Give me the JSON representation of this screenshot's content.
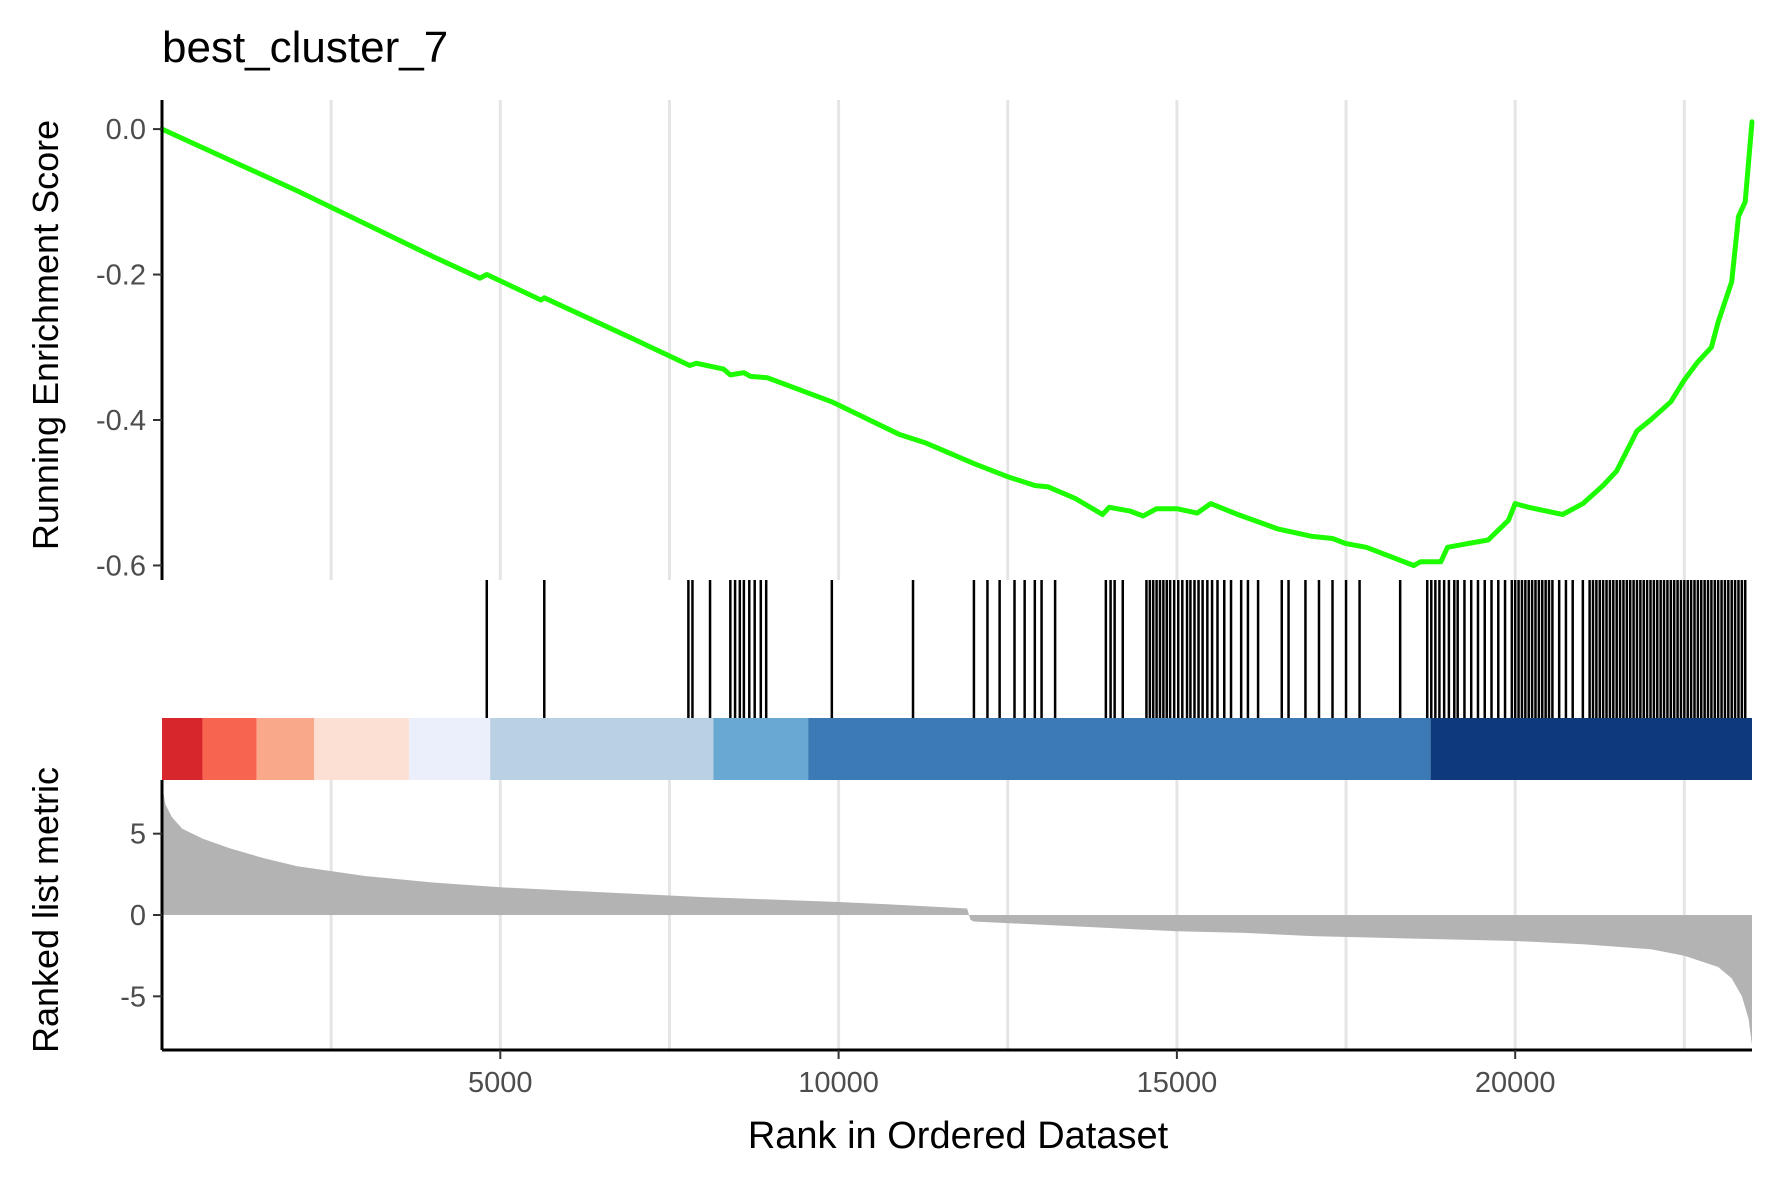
{
  "chart_data": {
    "type": "line",
    "title": "best_cluster_7",
    "xlabel": "Rank in Ordered Dataset",
    "es_ylabel": "Running Enrichment Score",
    "metric_ylabel": "Ranked list metric",
    "xlim": [
      0,
      23500
    ],
    "x_ticks": [
      5000,
      10000,
      15000,
      20000
    ],
    "x_tick_labels": [
      "5000",
      "10000",
      "15000",
      "20000"
    ],
    "es_ylim": [
      -0.62,
      0.04
    ],
    "es_ticks": [
      0.0,
      -0.2,
      -0.4,
      -0.6
    ],
    "es_tick_labels": [
      "0.0",
      "-0.2",
      "-0.4",
      "-0.6"
    ],
    "metric_ylim": [
      -8.3,
      8.3
    ],
    "metric_ticks": [
      5,
      0,
      -5
    ],
    "metric_tick_labels": [
      "5",
      "0",
      "-5"
    ],
    "grid_x": [
      2500,
      7500,
      12500,
      17500,
      22500
    ],
    "line_color": "#1dfc00",
    "metric_fill_color": "#b3b3b3",
    "running_es": {
      "x": [
        0,
        2000,
        4000,
        4700,
        4800,
        5600,
        5650,
        7000,
        7800,
        7900,
        8300,
        8400,
        8600,
        8700,
        8950,
        9900,
        10900,
        11300,
        12000,
        12500,
        12900,
        13100,
        13500,
        13900,
        14000,
        14300,
        14500,
        14700,
        15000,
        15300,
        15500,
        15900,
        16500,
        17000,
        17300,
        17500,
        17800,
        18500,
        18600,
        18900,
        19000,
        19300,
        19600,
        19900,
        20000,
        20200,
        20700,
        21000,
        21300,
        21500,
        21800,
        22000,
        22300,
        22500,
        22700,
        22900,
        23000,
        23200,
        23300,
        23400,
        23500
      ],
      "y": [
        0.0,
        -0.085,
        -0.175,
        -0.205,
        -0.2,
        -0.235,
        -0.232,
        -0.29,
        -0.325,
        -0.322,
        -0.33,
        -0.338,
        -0.335,
        -0.34,
        -0.342,
        -0.375,
        -0.42,
        -0.432,
        -0.46,
        -0.478,
        -0.49,
        -0.492,
        -0.508,
        -0.53,
        -0.52,
        -0.525,
        -0.532,
        -0.522,
        -0.522,
        -0.528,
        -0.515,
        -0.53,
        -0.55,
        -0.56,
        -0.563,
        -0.57,
        -0.575,
        -0.6,
        -0.595,
        -0.595,
        -0.575,
        -0.57,
        -0.565,
        -0.538,
        -0.515,
        -0.52,
        -0.53,
        -0.515,
        -0.49,
        -0.47,
        -0.415,
        -0.4,
        -0.375,
        -0.345,
        -0.32,
        -0.3,
        -0.265,
        -0.21,
        -0.12,
        -0.1,
        0.01
      ]
    },
    "gene_hits": [
      4800,
      5650,
      7780,
      7840,
      8100,
      8400,
      8470,
      8540,
      8600,
      8680,
      8760,
      8850,
      8930,
      9900,
      11100,
      12000,
      12200,
      12380,
      12600,
      12750,
      12900,
      13000,
      13200,
      13950,
      14020,
      14080,
      14200,
      14550,
      14600,
      14650,
      14700,
      14750,
      14800,
      14850,
      14900,
      14960,
      15020,
      15080,
      15150,
      15200,
      15260,
      15320,
      15380,
      15450,
      15520,
      15600,
      15700,
      15800,
      15950,
      16050,
      16200,
      16550,
      16650,
      16900,
      17100,
      17300,
      17500,
      17700,
      18300,
      18700,
      18760,
      18820,
      18880,
      18950,
      19020,
      19100,
      19150,
      19250,
      19350,
      19450,
      19550,
      19650,
      19750,
      19850,
      19950,
      20000,
      20050,
      20100,
      20150,
      20200,
      20250,
      20300,
      20350,
      20400,
      20450,
      20500,
      20550,
      20650,
      20750,
      20850,
      21000,
      21100,
      21150,
      21200,
      21250,
      21300,
      21350,
      21400,
      21450,
      21500,
      21550,
      21600,
      21650,
      21700,
      21750,
      21800,
      21850,
      21900,
      21950,
      22000,
      22050,
      22100,
      22150,
      22200,
      22250,
      22300,
      22350,
      22400,
      22450,
      22500,
      22550,
      22600,
      22650,
      22700,
      22750,
      22800,
      22850,
      22900,
      22950,
      23000,
      23050,
      23100,
      23150,
      23200,
      23250,
      23300,
      23350,
      23400
    ],
    "heat_bands": [
      {
        "x0": 0,
        "x1": 600,
        "color": "#d7262c"
      },
      {
        "x0": 600,
        "x1": 1400,
        "color": "#f76450"
      },
      {
        "x0": 1400,
        "x1": 2250,
        "color": "#f9a98a"
      },
      {
        "x0": 2250,
        "x1": 3650,
        "color": "#fde0d4"
      },
      {
        "x0": 3650,
        "x1": 4850,
        "color": "#ebeffb"
      },
      {
        "x0": 4850,
        "x1": 8150,
        "color": "#bad1e4"
      },
      {
        "x0": 8150,
        "x1": 9550,
        "color": "#6aa8d4"
      },
      {
        "x0": 9550,
        "x1": 18750,
        "color": "#3b7ab4"
      },
      {
        "x0": 18750,
        "x1": 23500,
        "color": "#0e3a7b"
      }
    ],
    "ranked_metric": {
      "x": [
        0,
        50,
        150,
        300,
        600,
        1000,
        1500,
        2000,
        2500,
        3000,
        4000,
        5000,
        6000,
        7000,
        8000,
        9000,
        10000,
        11000,
        11900,
        11950,
        12000,
        13000,
        14000,
        15000,
        16000,
        17000,
        18000,
        19000,
        20000,
        21000,
        22000,
        22500,
        23000,
        23200,
        23350,
        23450,
        23500
      ],
      "y": [
        8.0,
        6.8,
        6.0,
        5.3,
        4.7,
        4.1,
        3.5,
        3.0,
        2.7,
        2.4,
        2.0,
        1.7,
        1.5,
        1.3,
        1.1,
        0.95,
        0.8,
        0.6,
        0.4,
        -0.3,
        -0.4,
        -0.6,
        -0.8,
        -1.0,
        -1.1,
        -1.3,
        -1.4,
        -1.5,
        -1.6,
        -1.8,
        -2.1,
        -2.5,
        -3.2,
        -3.9,
        -5.0,
        -6.4,
        -8.0
      ]
    }
  }
}
